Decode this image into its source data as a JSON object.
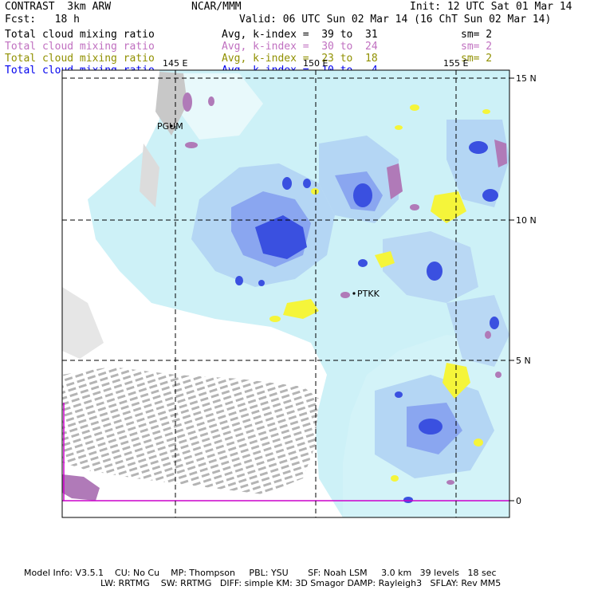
{
  "header": {
    "left_title": "CONTRAST  3km ARW",
    "center_title": "NCAR/MMM",
    "init": "Init: 12 UTC Sat 01 Mar 14",
    "fcst": "Fcst:   18 h",
    "valid": "Valid: 06 UTC Sun 02 Mar 14 (16 ChT Sun 02 Mar 14)"
  },
  "fields": [
    {
      "name": "Total cloud mixing ratio",
      "desc": "Avg, k-index =  39 to  31",
      "sm": "sm= 2",
      "color": "#000000"
    },
    {
      "name": "Total cloud mixing ratio",
      "desc": "Avg, k-index =  30 to  24",
      "sm": "sm= 2",
      "color": "#c070c0"
    },
    {
      "name": "Total cloud mixing ratio",
      "desc": "Avg, k-index =  23 to  18",
      "sm": "sm= 2",
      "color": "#909000"
    },
    {
      "name": "Total cloud mixing ratio",
      "desc": "Avg, k-index =  10 to   4",
      "sm": "",
      "color": "#0000ee"
    }
  ],
  "map": {
    "lon_labels": [
      "145 E",
      "150 E",
      "155 E"
    ],
    "lat_labels": [
      "15 N",
      "10 N",
      "5 N",
      "0"
    ],
    "stations": [
      "PGUM",
      "PTKK"
    ]
  },
  "footer": {
    "line1": "Model Info: V3.5.1    CU: No Cu    MP: Thompson     PBL: YSU       SF: Noah LSM     3.0 km   39 levels   18 sec",
    "line2": "LW: RRTMG    SW: RRTMG   DIFF: simple KM: 3D Smagor DAMP: Rayleigh3   SFLAY: Rev MM5"
  }
}
